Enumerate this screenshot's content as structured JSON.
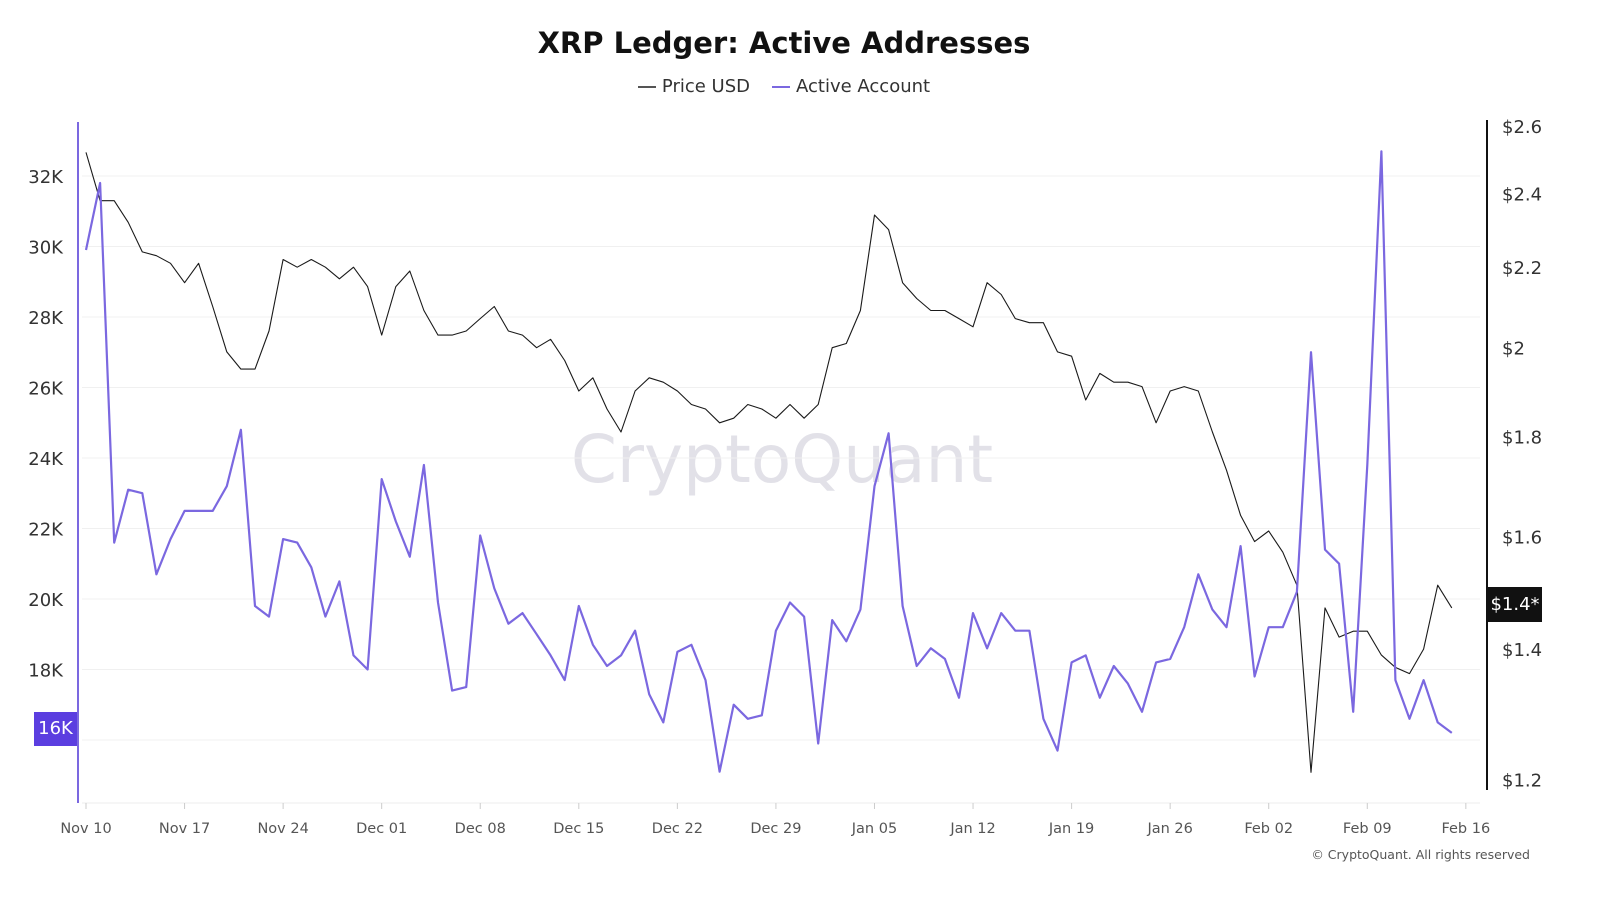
{
  "chart_data": {
    "type": "line",
    "title": "XRP Ledger: Active Addresses",
    "legend_position": "top-center",
    "grid": true,
    "watermark": "CryptoQuant",
    "footer": "© CryptoQuant. All rights reserved",
    "x_ticks": [
      "Nov 10",
      "Nov 17",
      "Nov 24",
      "Dec 01",
      "Dec 08",
      "Dec 15",
      "Dec 22",
      "Dec 29",
      "Jan 05",
      "Jan 12",
      "Jan 19",
      "Jan 26",
      "Feb 02",
      "Feb 09",
      "Feb 16"
    ],
    "y_left": {
      "ticks": [
        "16K",
        "18K",
        "20K",
        "22K",
        "24K",
        "26K",
        "28K",
        "30K",
        "32K"
      ],
      "tick_values": [
        16000,
        18000,
        20000,
        22000,
        24000,
        26000,
        28000,
        30000,
        32000
      ],
      "range": [
        14200,
        33500
      ],
      "scale": "linear",
      "highlight_label": "16K"
    },
    "y_right": {
      "ticks": [
        "$1.2",
        "$1.4",
        "$1.6",
        "$1.8",
        "$2",
        "$2.2",
        "$2.4",
        "$2.6"
      ],
      "tick_values": [
        1.2,
        1.4,
        1.6,
        1.8,
        2.0,
        2.2,
        2.4,
        2.6
      ],
      "range": [
        1.2,
        2.6
      ],
      "scale": "log",
      "current_label": "$1.4*"
    },
    "x": [
      "Nov 10",
      "Nov 11",
      "Nov 12",
      "Nov 13",
      "Nov 14",
      "Nov 15",
      "Nov 16",
      "Nov 17",
      "Nov 18",
      "Nov 19",
      "Nov 20",
      "Nov 21",
      "Nov 22",
      "Nov 23",
      "Nov 24",
      "Nov 25",
      "Nov 26",
      "Nov 27",
      "Nov 28",
      "Nov 29",
      "Nov 30",
      "Dec 01",
      "Dec 02",
      "Dec 03",
      "Dec 04",
      "Dec 05",
      "Dec 06",
      "Dec 07",
      "Dec 08",
      "Dec 09",
      "Dec 10",
      "Dec 11",
      "Dec 12",
      "Dec 13",
      "Dec 14",
      "Dec 15",
      "Dec 16",
      "Dec 17",
      "Dec 18",
      "Dec 19",
      "Dec 20",
      "Dec 21",
      "Dec 22",
      "Dec 23",
      "Dec 24",
      "Dec 25",
      "Dec 26",
      "Dec 27",
      "Dec 28",
      "Dec 29",
      "Dec 30",
      "Dec 31",
      "Jan 01",
      "Jan 02",
      "Jan 03",
      "Jan 04",
      "Jan 05",
      "Jan 06",
      "Jan 07",
      "Jan 08",
      "Jan 09",
      "Jan 10",
      "Jan 11",
      "Jan 12",
      "Jan 13",
      "Jan 14",
      "Jan 15",
      "Jan 16",
      "Jan 17",
      "Jan 18",
      "Jan 19",
      "Jan 20",
      "Jan 21",
      "Jan 22",
      "Jan 23",
      "Jan 24",
      "Jan 25",
      "Jan 26",
      "Jan 27",
      "Jan 28",
      "Jan 29",
      "Jan 30",
      "Jan 31",
      "Feb 01",
      "Feb 02",
      "Feb 03",
      "Feb 04",
      "Feb 05",
      "Feb 06",
      "Feb 07",
      "Feb 08",
      "Feb 09",
      "Feb 10",
      "Feb 11",
      "Feb 12",
      "Feb 13",
      "Feb 14",
      "Feb 15"
    ],
    "series": [
      {
        "name": "Price USD",
        "axis": "right",
        "color": "#1a1a1a",
        "values": [
          2.52,
          2.38,
          2.38,
          2.32,
          2.24,
          2.23,
          2.21,
          2.16,
          2.21,
          2.1,
          1.99,
          1.95,
          1.95,
          2.04,
          2.22,
          2.2,
          2.22,
          2.2,
          2.17,
          2.2,
          2.15,
          2.03,
          2.15,
          2.19,
          2.09,
          2.03,
          2.03,
          2.04,
          2.07,
          2.1,
          2.04,
          2.03,
          2.0,
          2.02,
          1.97,
          1.9,
          1.93,
          1.86,
          1.81,
          1.9,
          1.93,
          1.92,
          1.9,
          1.87,
          1.86,
          1.83,
          1.84,
          1.87,
          1.86,
          1.84,
          1.87,
          1.84,
          1.87,
          2.0,
          2.01,
          2.09,
          2.34,
          2.3,
          2.16,
          2.12,
          2.09,
          2.09,
          2.07,
          2.05,
          2.16,
          2.13,
          2.07,
          2.06,
          2.06,
          1.99,
          1.98,
          1.88,
          1.94,
          1.92,
          1.92,
          1.91,
          1.83,
          1.9,
          1.91,
          1.9,
          1.81,
          1.73,
          1.64,
          1.59,
          1.61,
          1.57,
          1.51,
          1.21,
          1.47,
          1.42,
          1.43,
          1.43,
          1.39,
          1.37,
          1.36,
          1.4,
          1.51,
          1.47
        ]
      },
      {
        "name": "Active Account",
        "axis": "left",
        "color": "#7b68e0",
        "values": [
          29900,
          31800,
          21600,
          23100,
          23000,
          20700,
          21700,
          22500,
          22500,
          22500,
          23200,
          24800,
          19800,
          19500,
          21700,
          21600,
          20900,
          19500,
          20500,
          18400,
          18000,
          23400,
          22200,
          21200,
          23800,
          19900,
          17400,
          17500,
          21800,
          20300,
          19300,
          19600,
          19000,
          18400,
          17700,
          19800,
          18700,
          18100,
          18400,
          19100,
          17300,
          16500,
          18500,
          18700,
          17700,
          15100,
          17000,
          16600,
          16700,
          19100,
          19900,
          19500,
          15900,
          19400,
          18800,
          19700,
          23200,
          24700,
          19800,
          18100,
          18600,
          18300,
          17200,
          19600,
          18600,
          19600,
          19100,
          19100,
          16600,
          15700,
          18200,
          18400,
          17200,
          18100,
          17600,
          16800,
          18200,
          18300,
          19200,
          20700,
          19700,
          19200,
          21500,
          17800,
          19200,
          19200,
          20200,
          27000,
          21400,
          21000,
          16800,
          23800,
          32700,
          17700,
          16600,
          17700,
          16500,
          16200
        ]
      }
    ]
  },
  "colors": {
    "accent": "#5b3ee0",
    "left_axis": "#7b68e0",
    "right_axis": "#111111",
    "grid": "#f0f0f0",
    "watermark": "#e2e1e8"
  }
}
